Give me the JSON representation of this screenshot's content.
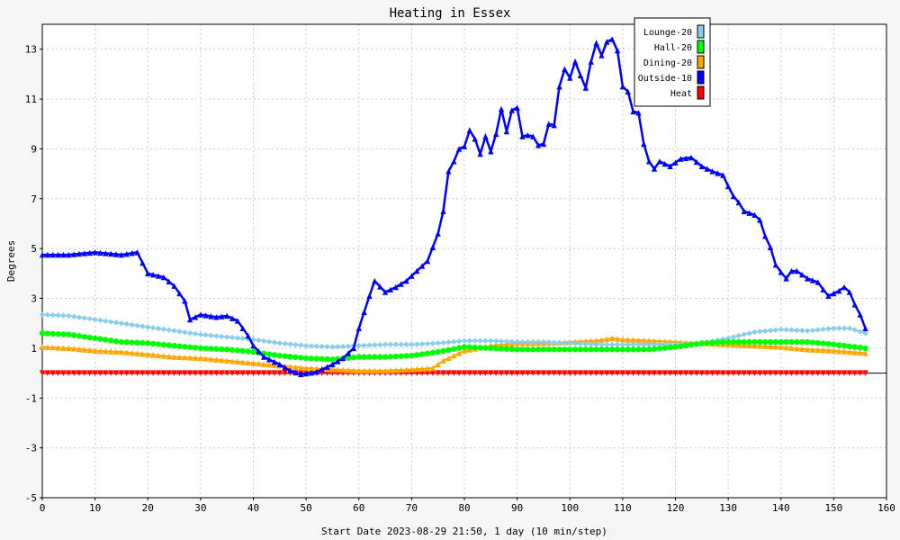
{
  "chart_data": {
    "type": "line",
    "title": "Heating in Essex",
    "xlabel": "Start Date 2023-08-29 21:50, 1 day (10 min/step)",
    "ylabel": "Degrees",
    "xlim": [
      0,
      160
    ],
    "ylim": [
      -5,
      14
    ],
    "xticks": [
      0,
      10,
      20,
      30,
      40,
      50,
      60,
      70,
      80,
      90,
      100,
      110,
      120,
      130,
      140,
      150,
      160
    ],
    "yticks": [
      -5,
      -3,
      -1,
      1,
      3,
      5,
      7,
      9,
      11,
      13
    ],
    "grid": true,
    "legend_position": "top-right",
    "series": [
      {
        "name": "Lounge-20",
        "color": "#87ceeb",
        "marker": "diamond",
        "points": [
          [
            0,
            2.35
          ],
          [
            5,
            2.3
          ],
          [
            10,
            2.15
          ],
          [
            15,
            2.0
          ],
          [
            20,
            1.85
          ],
          [
            25,
            1.7
          ],
          [
            30,
            1.55
          ],
          [
            35,
            1.45
          ],
          [
            40,
            1.35
          ],
          [
            45,
            1.2
          ],
          [
            50,
            1.1
          ],
          [
            55,
            1.05
          ],
          [
            60,
            1.1
          ],
          [
            65,
            1.15
          ],
          [
            70,
            1.15
          ],
          [
            75,
            1.2
          ],
          [
            80,
            1.3
          ],
          [
            85,
            1.3
          ],
          [
            90,
            1.25
          ],
          [
            95,
            1.25
          ],
          [
            100,
            1.2
          ],
          [
            105,
            1.15
          ],
          [
            110,
            1.15
          ],
          [
            115,
            1.15
          ],
          [
            120,
            1.15
          ],
          [
            125,
            1.2
          ],
          [
            130,
            1.4
          ],
          [
            135,
            1.65
          ],
          [
            140,
            1.75
          ],
          [
            145,
            1.7
          ],
          [
            150,
            1.8
          ],
          [
            153,
            1.8
          ],
          [
            156,
            1.6
          ]
        ]
      },
      {
        "name": "Hall-20",
        "color": "#00ff00",
        "marker": "circle",
        "points": [
          [
            0,
            1.6
          ],
          [
            5,
            1.55
          ],
          [
            10,
            1.4
          ],
          [
            15,
            1.25
          ],
          [
            20,
            1.2
          ],
          [
            25,
            1.1
          ],
          [
            30,
            1.0
          ],
          [
            35,
            0.95
          ],
          [
            40,
            0.85
          ],
          [
            45,
            0.7
          ],
          [
            50,
            0.6
          ],
          [
            55,
            0.55
          ],
          [
            60,
            0.65
          ],
          [
            65,
            0.65
          ],
          [
            70,
            0.7
          ],
          [
            75,
            0.85
          ],
          [
            80,
            1.05
          ],
          [
            85,
            1.0
          ],
          [
            90,
            0.95
          ],
          [
            95,
            0.95
          ],
          [
            100,
            0.95
          ],
          [
            105,
            0.95
          ],
          [
            110,
            0.95
          ],
          [
            115,
            0.95
          ],
          [
            120,
            1.05
          ],
          [
            125,
            1.2
          ],
          [
            130,
            1.25
          ],
          [
            135,
            1.25
          ],
          [
            140,
            1.25
          ],
          [
            145,
            1.25
          ],
          [
            150,
            1.15
          ],
          [
            156,
            1.0
          ]
        ]
      },
      {
        "name": "Dining-20",
        "color": "#ffa500",
        "marker": "triangle",
        "points": [
          [
            0,
            1.05
          ],
          [
            5,
            1.0
          ],
          [
            10,
            0.9
          ],
          [
            15,
            0.85
          ],
          [
            20,
            0.75
          ],
          [
            25,
            0.65
          ],
          [
            30,
            0.6
          ],
          [
            35,
            0.5
          ],
          [
            40,
            0.4
          ],
          [
            45,
            0.3
          ],
          [
            50,
            0.2
          ],
          [
            55,
            0.15
          ],
          [
            60,
            0.1
          ],
          [
            65,
            0.1
          ],
          [
            70,
            0.15
          ],
          [
            74,
            0.2
          ],
          [
            76,
            0.5
          ],
          [
            80,
            0.9
          ],
          [
            85,
            1.1
          ],
          [
            90,
            1.2
          ],
          [
            95,
            1.2
          ],
          [
            100,
            1.25
          ],
          [
            105,
            1.3
          ],
          [
            108,
            1.4
          ],
          [
            110,
            1.35
          ],
          [
            115,
            1.3
          ],
          [
            120,
            1.25
          ],
          [
            125,
            1.2
          ],
          [
            130,
            1.15
          ],
          [
            135,
            1.1
          ],
          [
            140,
            1.05
          ],
          [
            145,
            0.95
          ],
          [
            150,
            0.9
          ],
          [
            156,
            0.8
          ]
        ]
      },
      {
        "name": "Outside-10",
        "color": "#0000ff",
        "marker": "triangle",
        "points": [
          [
            0,
            4.75
          ],
          [
            5,
            4.75
          ],
          [
            10,
            4.85
          ],
          [
            15,
            4.75
          ],
          [
            18,
            4.85
          ],
          [
            20,
            4.0
          ],
          [
            23,
            3.85
          ],
          [
            25,
            3.5
          ],
          [
            27,
            2.9
          ],
          [
            28,
            2.15
          ],
          [
            30,
            2.35
          ],
          [
            33,
            2.25
          ],
          [
            35,
            2.3
          ],
          [
            37,
            2.1
          ],
          [
            39,
            1.5
          ],
          [
            40,
            1.1
          ],
          [
            42,
            0.65
          ],
          [
            45,
            0.35
          ],
          [
            47,
            0.1
          ],
          [
            49,
            -0.05
          ],
          [
            52,
            0.05
          ],
          [
            55,
            0.35
          ],
          [
            57,
            0.6
          ],
          [
            59,
            1.0
          ],
          [
            60,
            1.8
          ],
          [
            62,
            3.1
          ],
          [
            63,
            3.7
          ],
          [
            65,
            3.25
          ],
          [
            67,
            3.45
          ],
          [
            69,
            3.7
          ],
          [
            71,
            4.1
          ],
          [
            73,
            4.5
          ],
          [
            75,
            5.6
          ],
          [
            76,
            6.5
          ],
          [
            77,
            8.1
          ],
          [
            78,
            8.5
          ],
          [
            79,
            9.0
          ],
          [
            80,
            9.1
          ],
          [
            81,
            9.75
          ],
          [
            82,
            9.4
          ],
          [
            83,
            8.8
          ],
          [
            84,
            9.5
          ],
          [
            85,
            8.9
          ],
          [
            86,
            9.6
          ],
          [
            87,
            10.6
          ],
          [
            88,
            9.7
          ],
          [
            89,
            10.55
          ],
          [
            90,
            10.65
          ],
          [
            91,
            9.5
          ],
          [
            92,
            9.55
          ],
          [
            93,
            9.5
          ],
          [
            94,
            9.15
          ],
          [
            95,
            9.2
          ],
          [
            96,
            10.0
          ],
          [
            97,
            9.95
          ],
          [
            98,
            11.5
          ],
          [
            99,
            12.2
          ],
          [
            100,
            11.85
          ],
          [
            101,
            12.5
          ],
          [
            102,
            11.95
          ],
          [
            103,
            11.45
          ],
          [
            104,
            12.5
          ],
          [
            105,
            13.25
          ],
          [
            106,
            12.75
          ],
          [
            107,
            13.3
          ],
          [
            108,
            13.4
          ],
          [
            109,
            12.95
          ],
          [
            110,
            11.5
          ],
          [
            111,
            11.3
          ],
          [
            112,
            10.5
          ],
          [
            113,
            10.45
          ],
          [
            114,
            9.2
          ],
          [
            115,
            8.5
          ],
          [
            116,
            8.2
          ],
          [
            117,
            8.5
          ],
          [
            119,
            8.3
          ],
          [
            121,
            8.6
          ],
          [
            123,
            8.65
          ],
          [
            125,
            8.3
          ],
          [
            127,
            8.1
          ],
          [
            129,
            7.95
          ],
          [
            130,
            7.5
          ],
          [
            131,
            7.1
          ],
          [
            132,
            6.85
          ],
          [
            133,
            6.5
          ],
          [
            135,
            6.35
          ],
          [
            136,
            6.15
          ],
          [
            137,
            5.5
          ],
          [
            138,
            5.05
          ],
          [
            139,
            4.35
          ],
          [
            140,
            4.05
          ],
          [
            141,
            3.8
          ],
          [
            142,
            4.1
          ],
          [
            143,
            4.1
          ],
          [
            145,
            3.8
          ],
          [
            147,
            3.65
          ],
          [
            148,
            3.35
          ],
          [
            149,
            3.1
          ],
          [
            151,
            3.3
          ],
          [
            152,
            3.45
          ],
          [
            153,
            3.25
          ],
          [
            154,
            2.75
          ],
          [
            155,
            2.35
          ],
          [
            156,
            1.8
          ]
        ]
      },
      {
        "name": "Heat",
        "color": "#ff0000",
        "marker": "triangle-down",
        "points": [
          [
            0,
            0.0
          ],
          [
            156,
            0.0
          ]
        ]
      }
    ]
  }
}
